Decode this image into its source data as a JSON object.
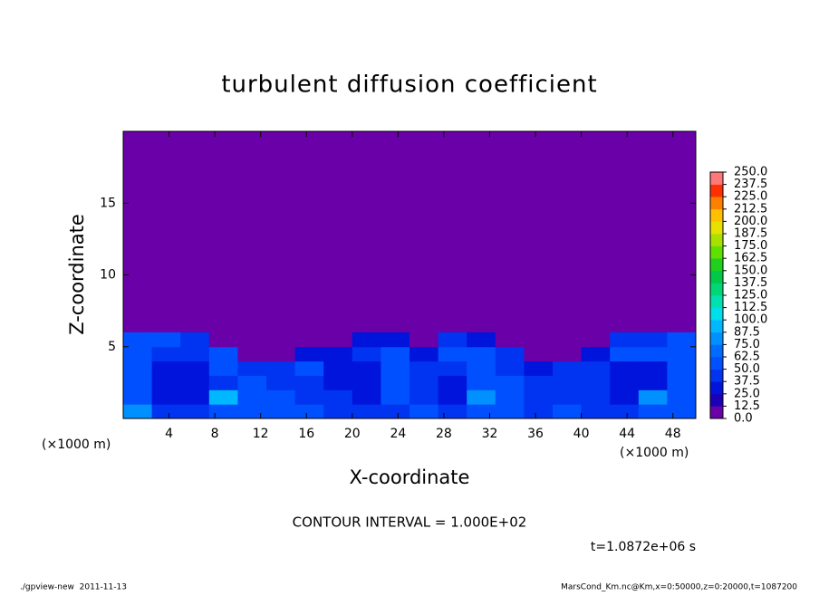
{
  "chart_data": {
    "type": "contour",
    "title": "turbulent diffusion coefficient",
    "x_label": "X-coordinate",
    "y_label": "Z-coordinate",
    "x_unit_left": "(×1000 m)",
    "x_unit_right": "(×1000 m)",
    "contour_interval": "CONTOUR INTERVAL = 1.000E+02",
    "time_label": "t=1.0872e+06 s",
    "footer_left": "./gpview-new  2011-11-13",
    "footer_right": "MarsCond_Km.nc@Km,x=0:50000,z=0:20000,t=1087200",
    "xlim": [
      0,
      50
    ],
    "ylim": [
      0,
      20
    ],
    "xticks": [
      4,
      8,
      12,
      16,
      20,
      24,
      28,
      32,
      36,
      40,
      44,
      48
    ],
    "yticks": [
      5,
      10,
      15
    ],
    "x_edges": [
      0,
      2.5,
      5,
      7.5,
      10,
      12.5,
      15,
      17.5,
      20,
      22.5,
      25,
      27.5,
      30,
      32.5,
      35,
      37.5,
      40,
      42.5,
      45,
      47.5,
      50
    ],
    "z_edges": [
      0,
      1,
      2,
      3,
      4,
      5,
      6
    ],
    "values": [
      [
        80,
        45,
        40,
        60,
        50,
        50,
        50,
        45,
        40,
        45,
        50,
        40,
        50,
        50,
        45,
        50,
        45,
        40,
        60,
        50
      ],
      [
        60,
        35,
        30,
        90,
        50,
        55,
        45,
        40,
        30,
        50,
        45,
        35,
        80,
        50,
        40,
        45,
        45,
        30,
        80,
        60
      ],
      [
        55,
        30,
        25,
        40,
        50,
        45,
        40,
        30,
        25,
        55,
        40,
        30,
        60,
        50,
        45,
        40,
        40,
        25,
        30,
        55
      ],
      [
        60,
        35,
        30,
        50,
        40,
        40,
        50,
        30,
        30,
        60,
        45,
        40,
        60,
        40,
        35,
        40,
        40,
        30,
        30,
        55
      ],
      [
        60,
        45,
        40,
        50,
        0,
        0,
        30,
        35,
        40,
        50,
        30,
        50,
        50,
        40,
        0,
        0,
        35,
        50,
        50,
        60
      ],
      [
        55,
        50,
        45,
        0,
        0,
        0,
        0,
        0,
        35,
        30,
        0,
        40,
        35,
        0,
        0,
        0,
        0,
        40,
        45,
        50
      ]
    ],
    "levels": [
      {
        "value": 0,
        "label": "0.0"
      },
      {
        "value": 12.5,
        "label": "12.5"
      },
      {
        "value": 25,
        "label": "25.0"
      },
      {
        "value": 37.5,
        "label": "37.5"
      },
      {
        "value": 50,
        "label": "50.0"
      },
      {
        "value": 62.5,
        "label": "62.5"
      },
      {
        "value": 75,
        "label": "75.0"
      },
      {
        "value": 87.5,
        "label": "87.5"
      },
      {
        "value": 100,
        "label": "100.0"
      },
      {
        "value": 112.5,
        "label": "112.5"
      },
      {
        "value": 125,
        "label": "125.0"
      },
      {
        "value": 137.5,
        "label": "137.5"
      },
      {
        "value": 150,
        "label": "150.0"
      },
      {
        "value": 162.5,
        "label": "162.5"
      },
      {
        "value": 175,
        "label": "175.0"
      },
      {
        "value": 187.5,
        "label": "187.5"
      },
      {
        "value": 200,
        "label": "200.0"
      },
      {
        "value": 212.5,
        "label": "212.5"
      },
      {
        "value": 225,
        "label": "225.0"
      },
      {
        "value": 237.5,
        "label": "237.5"
      },
      {
        "value": 250,
        "label": "250.0"
      }
    ],
    "colors": [
      "#6a00a8",
      "#1c00b8",
      "#0014dc",
      "#0034f0",
      "#0050ff",
      "#006cff",
      "#0090ff",
      "#00b8ff",
      "#00e0e8",
      "#00e0b0",
      "#00d878",
      "#00c848",
      "#20d020",
      "#60e000",
      "#a8e000",
      "#e8e000",
      "#ffc000",
      "#ff8000",
      "#ff3000",
      "#ff7878"
    ]
  }
}
